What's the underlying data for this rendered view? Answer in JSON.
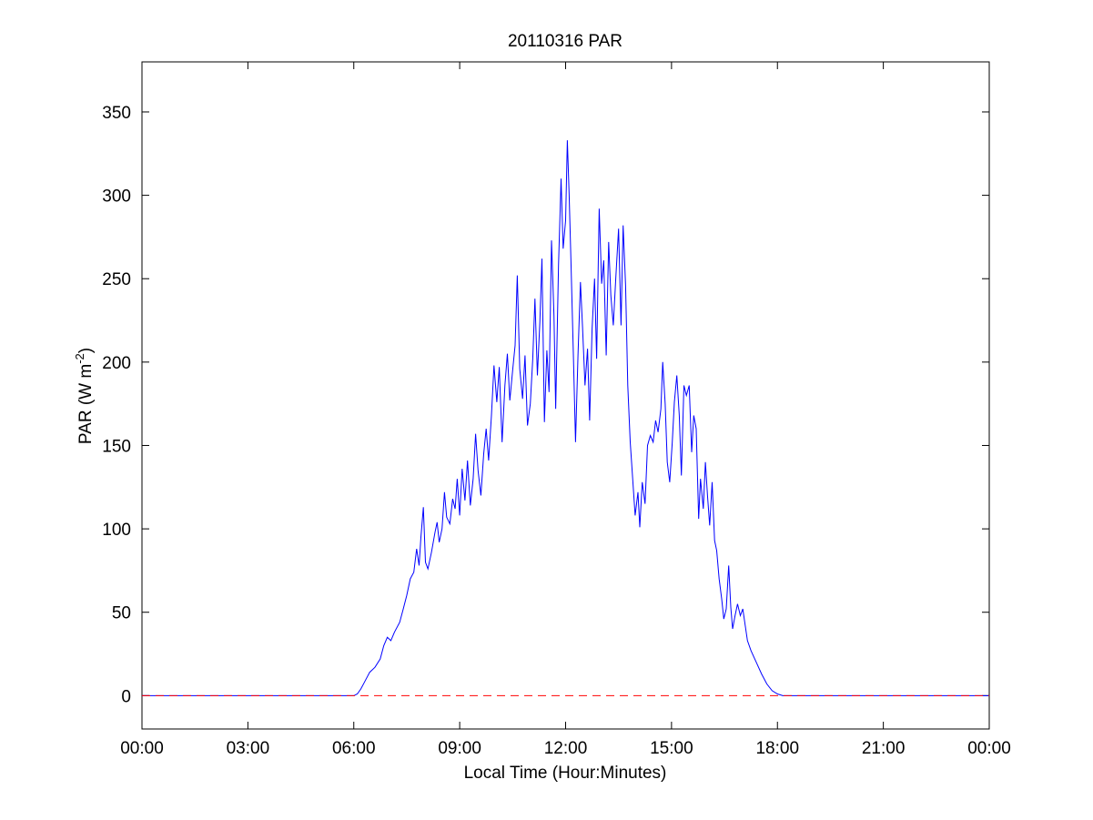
{
  "chart_data": {
    "type": "line",
    "title": "20110316 PAR",
    "xlabel": "Local Time (Hour:Minutes)",
    "ylabel_main": "PAR (W m",
    "ylabel_sup": "-2",
    "ylabel_close": ")",
    "xlim": [
      0,
      24
    ],
    "ylim": [
      -20,
      380
    ],
    "xticks": [
      0,
      3,
      6,
      9,
      12,
      15,
      18,
      21,
      24
    ],
    "xtick_labels": [
      "00:00",
      "03:00",
      "06:00",
      "09:00",
      "12:00",
      "15:00",
      "18:00",
      "21:00",
      "00:00"
    ],
    "yticks": [
      0,
      50,
      100,
      150,
      200,
      250,
      300,
      350
    ],
    "ytick_labels": [
      "0",
      "50",
      "100",
      "150",
      "200",
      "250",
      "300",
      "350"
    ],
    "grid": false,
    "series": [
      {
        "color": "#0000ff",
        "style": "solid",
        "points": [
          [
            0,
            0
          ],
          [
            6.0,
            0
          ],
          [
            6.1,
            1
          ],
          [
            6.2,
            4
          ],
          [
            6.3,
            8
          ],
          [
            6.45,
            14
          ],
          [
            6.6,
            17
          ],
          [
            6.75,
            22
          ],
          [
            6.85,
            30
          ],
          [
            6.95,
            35
          ],
          [
            7.05,
            33
          ],
          [
            7.15,
            38
          ],
          [
            7.3,
            44
          ],
          [
            7.4,
            52
          ],
          [
            7.5,
            60
          ],
          [
            7.6,
            70
          ],
          [
            7.7,
            74
          ],
          [
            7.78,
            88
          ],
          [
            7.85,
            78
          ],
          [
            7.9,
            95
          ],
          [
            7.97,
            113
          ],
          [
            8.03,
            80
          ],
          [
            8.1,
            76
          ],
          [
            8.2,
            86
          ],
          [
            8.3,
            98
          ],
          [
            8.36,
            104
          ],
          [
            8.42,
            92
          ],
          [
            8.5,
            100
          ],
          [
            8.57,
            122
          ],
          [
            8.63,
            107
          ],
          [
            8.72,
            103
          ],
          [
            8.8,
            118
          ],
          [
            8.87,
            112
          ],
          [
            8.93,
            130
          ],
          [
            9.0,
            108
          ],
          [
            9.07,
            136
          ],
          [
            9.15,
            117
          ],
          [
            9.22,
            141
          ],
          [
            9.3,
            114
          ],
          [
            9.38,
            130
          ],
          [
            9.45,
            157
          ],
          [
            9.52,
            135
          ],
          [
            9.6,
            120
          ],
          [
            9.68,
            145
          ],
          [
            9.75,
            160
          ],
          [
            9.82,
            141
          ],
          [
            9.9,
            168
          ],
          [
            9.97,
            198
          ],
          [
            10.05,
            176
          ],
          [
            10.12,
            197
          ],
          [
            10.2,
            152
          ],
          [
            10.28,
            186
          ],
          [
            10.35,
            205
          ],
          [
            10.42,
            177
          ],
          [
            10.5,
            195
          ],
          [
            10.57,
            210
          ],
          [
            10.63,
            252
          ],
          [
            10.7,
            196
          ],
          [
            10.78,
            178
          ],
          [
            10.85,
            204
          ],
          [
            10.92,
            162
          ],
          [
            11.0,
            175
          ],
          [
            11.07,
            202
          ],
          [
            11.13,
            238
          ],
          [
            11.2,
            192
          ],
          [
            11.27,
            224
          ],
          [
            11.33,
            262
          ],
          [
            11.4,
            164
          ],
          [
            11.47,
            207
          ],
          [
            11.53,
            182
          ],
          [
            11.6,
            273
          ],
          [
            11.67,
            228
          ],
          [
            11.72,
            172
          ],
          [
            11.8,
            258
          ],
          [
            11.87,
            310
          ],
          [
            11.93,
            268
          ],
          [
            12.0,
            285
          ],
          [
            12.05,
            333
          ],
          [
            12.1,
            300
          ],
          [
            12.15,
            262
          ],
          [
            12.22,
            205
          ],
          [
            12.28,
            152
          ],
          [
            12.35,
            204
          ],
          [
            12.42,
            248
          ],
          [
            12.48,
            221
          ],
          [
            12.55,
            186
          ],
          [
            12.62,
            208
          ],
          [
            12.68,
            165
          ],
          [
            12.75,
            220
          ],
          [
            12.82,
            250
          ],
          [
            12.88,
            202
          ],
          [
            12.95,
            292
          ],
          [
            13.02,
            247
          ],
          [
            13.08,
            261
          ],
          [
            13.15,
            204
          ],
          [
            13.22,
            272
          ],
          [
            13.28,
            240
          ],
          [
            13.35,
            222
          ],
          [
            13.42,
            250
          ],
          [
            13.5,
            280
          ],
          [
            13.57,
            222
          ],
          [
            13.63,
            282
          ],
          [
            13.7,
            246
          ],
          [
            13.76,
            186
          ],
          [
            13.83,
            152
          ],
          [
            13.9,
            130
          ],
          [
            13.97,
            108
          ],
          [
            14.05,
            122
          ],
          [
            14.1,
            101
          ],
          [
            14.17,
            128
          ],
          [
            14.25,
            115
          ],
          [
            14.32,
            150
          ],
          [
            14.4,
            156
          ],
          [
            14.48,
            152
          ],
          [
            14.55,
            165
          ],
          [
            14.62,
            158
          ],
          [
            14.7,
            172
          ],
          [
            14.75,
            200
          ],
          [
            14.82,
            175
          ],
          [
            14.88,
            140
          ],
          [
            14.95,
            128
          ],
          [
            15.02,
            152
          ],
          [
            15.08,
            176
          ],
          [
            15.15,
            192
          ],
          [
            15.22,
            168
          ],
          [
            15.28,
            132
          ],
          [
            15.35,
            186
          ],
          [
            15.42,
            180
          ],
          [
            15.5,
            186
          ],
          [
            15.57,
            146
          ],
          [
            15.63,
            168
          ],
          [
            15.7,
            160
          ],
          [
            15.77,
            106
          ],
          [
            15.82,
            130
          ],
          [
            15.9,
            112
          ],
          [
            15.96,
            140
          ],
          [
            16.02,
            120
          ],
          [
            16.08,
            102
          ],
          [
            16.15,
            128
          ],
          [
            16.22,
            93
          ],
          [
            16.28,
            87
          ],
          [
            16.35,
            70
          ],
          [
            16.42,
            58
          ],
          [
            16.48,
            46
          ],
          [
            16.55,
            52
          ],
          [
            16.62,
            78
          ],
          [
            16.68,
            53
          ],
          [
            16.73,
            40
          ],
          [
            16.8,
            48
          ],
          [
            16.87,
            55
          ],
          [
            16.95,
            48
          ],
          [
            17.02,
            52
          ],
          [
            17.08,
            43
          ],
          [
            17.15,
            33
          ],
          [
            17.25,
            27
          ],
          [
            17.4,
            20
          ],
          [
            17.55,
            13
          ],
          [
            17.7,
            7
          ],
          [
            17.85,
            3
          ],
          [
            18.0,
            1
          ],
          [
            18.15,
            0
          ],
          [
            24,
            0
          ]
        ]
      },
      {
        "color": "#ff0000",
        "style": "dashed",
        "points": [
          [
            0,
            0
          ],
          [
            24,
            0
          ]
        ]
      }
    ]
  }
}
